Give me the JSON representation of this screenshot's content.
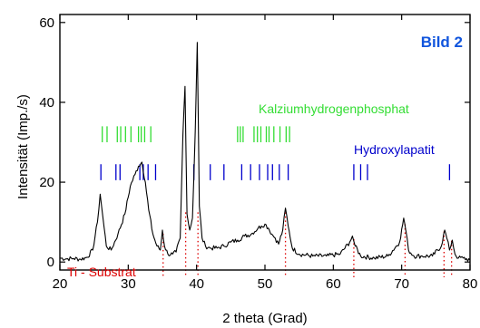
{
  "chart_data": {
    "type": "line",
    "title": "",
    "annotation_label": "Bild 2",
    "xlabel": "2 theta (Grad)",
    "ylabel": "Intensität (Imp./s)",
    "xlim": [
      20,
      80
    ],
    "ylim": [
      -2,
      62
    ],
    "x_ticks": [
      20,
      30,
      40,
      50,
      60,
      70,
      80
    ],
    "y_ticks": [
      0,
      20,
      40,
      60
    ],
    "grid": false,
    "colors": {
      "trace": "#000000",
      "calcium_phosphate": "#33dd33",
      "hydroxylapatite": "#0000cc",
      "substrate": "#dd0000",
      "annotation": "#1155dd"
    },
    "series": [
      {
        "x": [
          20,
          21,
          22,
          23,
          24,
          24.8,
          25.5,
          25.9,
          26.3,
          26.8,
          27.5,
          28.5,
          29.5,
          30.3,
          31,
          31.5,
          32,
          32.5,
          33,
          33.6,
          34.2,
          34.7,
          35,
          35.3,
          35.8,
          36.5,
          37,
          37.6,
          38,
          38.3,
          38.6,
          39,
          39.4,
          39.8,
          40.1,
          40.4,
          40.8,
          41.3,
          42,
          43,
          44,
          45,
          46,
          47,
          48,
          49,
          49.5,
          50,
          50.5,
          51,
          51.5,
          52,
          52.6,
          53,
          53.4,
          54,
          55,
          57,
          59,
          61,
          62.4,
          62.8,
          63.2,
          64,
          66,
          68,
          69.7,
          70.3,
          70.6,
          71,
          71.8,
          73,
          74.5,
          75.8,
          76.3,
          76.6,
          77,
          77.4,
          77.8,
          78.3,
          79,
          80
        ],
        "values": [
          1,
          0.8,
          0.9,
          0.7,
          1.2,
          3,
          10,
          17,
          11,
          4,
          3,
          7,
          12,
          19,
          22,
          24,
          25,
          20,
          13,
          7,
          4,
          3,
          8,
          4,
          2,
          2,
          2.5,
          6,
          32,
          44,
          12,
          8,
          11,
          33,
          55,
          14,
          6,
          4,
          3.5,
          3.5,
          4,
          5,
          5.5,
          6.5,
          7,
          8.5,
          9,
          9.5,
          8.5,
          7,
          6,
          4.5,
          8,
          13.5,
          9,
          3.5,
          2,
          1.5,
          1.5,
          2,
          5,
          6.5,
          4,
          1.5,
          1,
          1.5,
          5,
          11,
          8,
          3,
          1.5,
          1.5,
          1.5,
          4,
          8,
          6,
          3,
          5.5,
          2,
          1,
          1,
          0.5
        ]
      }
    ],
    "reference_sets": [
      {
        "name": "Kalziumhydrogenphosphat",
        "band": [
          30,
          34
        ],
        "positions": [
          26.2,
          26.9,
          28.4,
          28.9,
          29.6,
          30.4,
          31.5,
          31.9,
          32.4,
          33.3,
          46,
          46.4,
          46.8,
          48.4,
          48.9,
          49.4,
          50.2,
          50.6,
          51.3,
          52.2,
          53.1,
          53.6
        ]
      },
      {
        "name": "Hydroxylapatit",
        "band": [
          20.5,
          24.5
        ],
        "positions": [
          26,
          28.2,
          28.8,
          31.7,
          32.2,
          32.9,
          34,
          39.6,
          42,
          44,
          46.6,
          47.9,
          49.2,
          50.4,
          51.1,
          52.1,
          53.4,
          63,
          64,
          65,
          77
        ]
      },
      {
        "name": "Ti - Substrat",
        "positions": [
          35.1,
          38.4,
          40.2,
          53,
          63,
          70.5,
          76.2,
          77.3
        ]
      }
    ]
  }
}
